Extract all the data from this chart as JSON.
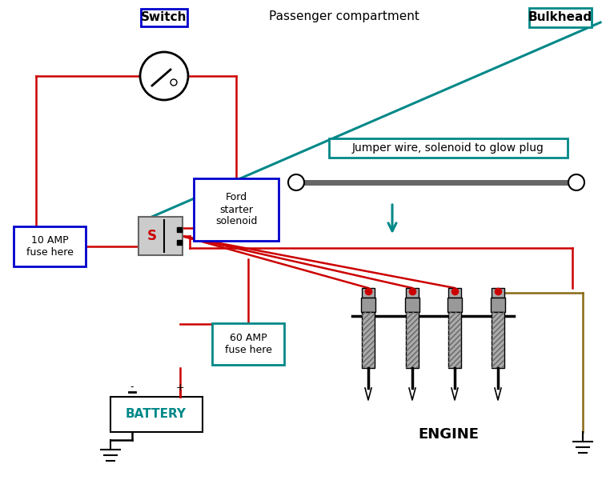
{
  "bg_color": "#ffffff",
  "wire_red": "#cc0000",
  "wire_teal": "#008888",
  "wire_brown": "#8B6914",
  "wire_black": "#000000",
  "wire_gray": "#888888",
  "switch_label": "Switch",
  "passenger_label": "Passenger compartment",
  "bulkhead_label": "Bulkhead",
  "jumper_label": "Jumper wire, solenoid to glow plug",
  "ford_label": "Ford\nstarter\nsolenoid",
  "fuse10_label": "10 AMP\nfuse here",
  "fuse60_label": "60 AMP\nfuse here",
  "battery_label": "BATTERY",
  "engine_label": "ENGINE",
  "blue_border": "#0000cc",
  "teal_border": "#008888",
  "teal_text": "#008888"
}
